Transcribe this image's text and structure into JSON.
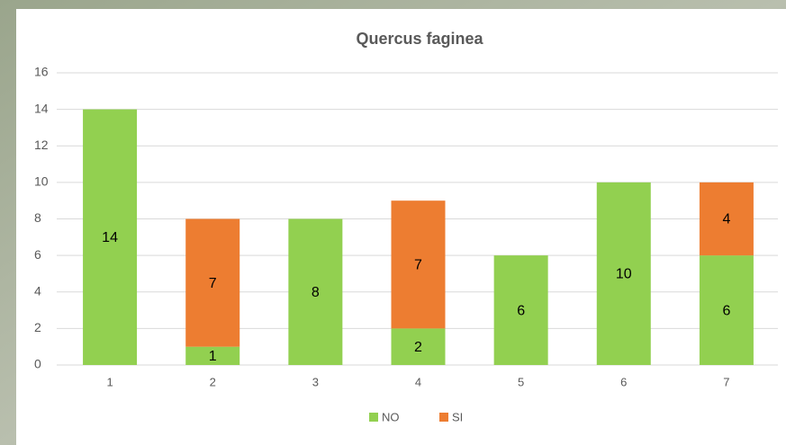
{
  "chart_data": {
    "type": "stacked_bar",
    "title": "Quercus faginea",
    "categories": [
      "1",
      "2",
      "3",
      "4",
      "5",
      "6",
      "7"
    ],
    "series": [
      {
        "name": "NO",
        "color": "#92d050",
        "values": [
          14,
          1,
          8,
          2,
          6,
          10,
          6
        ]
      },
      {
        "name": "SI",
        "color": "#ed7d31",
        "values": [
          null,
          7,
          null,
          7,
          null,
          null,
          4
        ]
      }
    ],
    "ylim": [
      0,
      16
    ],
    "yticks": [
      0,
      2,
      4,
      6,
      8,
      10,
      12,
      14,
      16
    ],
    "grid": true,
    "legend": "bottom"
  }
}
